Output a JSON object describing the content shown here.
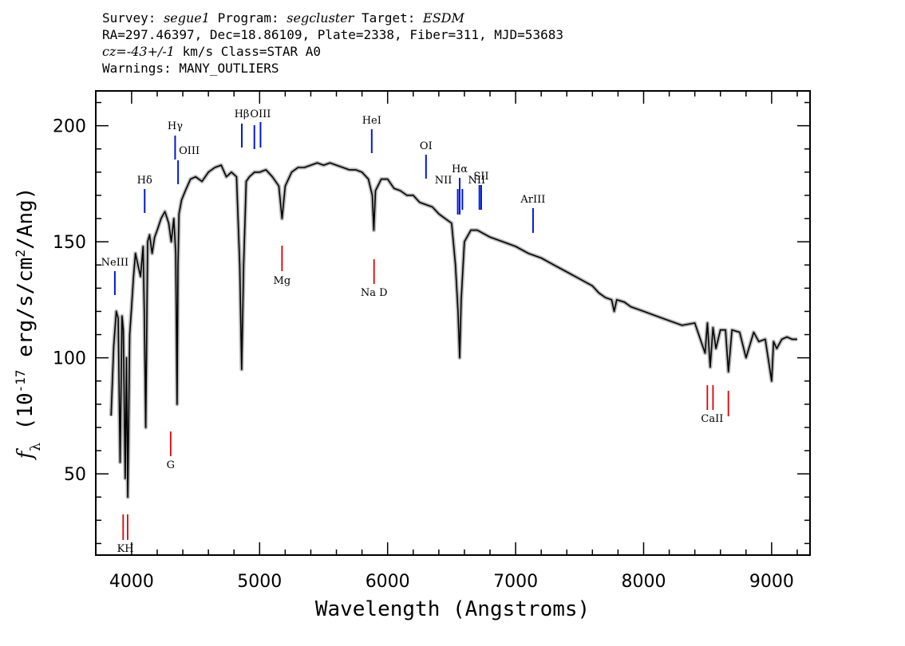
{
  "header": {
    "line1": {
      "survey_label": "Survey: ",
      "survey": "segue1",
      "program_label": " Program: ",
      "program": "segcluster",
      "target_label": " Target: ",
      "target": "ESDM"
    },
    "line2": "RA=297.46397, Dec=18.86109, Plate=2338, Fiber=311, MJD=53683",
    "line3": {
      "cz": "cz=-43+/-1",
      "rest": " km/s Class=STAR A0"
    },
    "line4": "Warnings: MANY_OUTLIERS"
  },
  "chart_data": {
    "type": "line",
    "xlabel": "Wavelength (Angstroms)",
    "ylabel": "f_λ (10^-17 erg/s/cm^2/Ang)",
    "xlim": [
      3720,
      9300
    ],
    "ylim": [
      15,
      215
    ],
    "xticks": [
      4000,
      5000,
      6000,
      7000,
      8000,
      9000
    ],
    "yticks": [
      50,
      100,
      150,
      200
    ],
    "colors": {
      "spectrum": "#000000",
      "error_band": "#b8b8b8",
      "emission": "#0018d8",
      "absorption": "#e00000"
    },
    "series": [
      {
        "x": [
          3840,
          3860,
          3880,
          3895,
          3910,
          3925,
          3935,
          3950,
          3960,
          3970,
          3985,
          4000,
          4015,
          4030,
          4050,
          4070,
          4090,
          4100,
          4110,
          4125,
          4140,
          4160,
          4180,
          4200,
          4230,
          4260,
          4290,
          4310,
          4330,
          4345,
          4355,
          4362,
          4370,
          4390,
          4420,
          4460,
          4500,
          4550,
          4600,
          4650,
          4700,
          4740,
          4780,
          4820,
          4845,
          4860,
          4875,
          4895,
          4920,
          4960,
          5000,
          5050,
          5100,
          5150,
          5175,
          5200,
          5250,
          5300,
          5350,
          5400,
          5450,
          5500,
          5550,
          5600,
          5650,
          5700,
          5750,
          5800,
          5850,
          5880,
          5892,
          5905,
          5950,
          6000,
          6050,
          6100,
          6150,
          6200,
          6250,
          6300,
          6350,
          6400,
          6450,
          6500,
          6530,
          6550,
          6563,
          6575,
          6600,
          6650,
          6700,
          6800,
          6900,
          7000,
          7100,
          7200,
          7300,
          7400,
          7500,
          7600,
          7650,
          7700,
          7750,
          7770,
          7790,
          7850,
          7900,
          8000,
          8100,
          8200,
          8300,
          8400,
          8480,
          8498,
          8520,
          8542,
          8565,
          8600,
          8640,
          8662,
          8690,
          8750,
          8800,
          8860,
          8900,
          8950,
          9000,
          9015,
          9040,
          9080,
          9120,
          9160,
          9200
        ],
        "y": [
          75,
          105,
          120,
          117,
          55,
          118,
          112,
          48,
          100,
          40,
          110,
          122,
          135,
          145,
          140,
          135,
          148,
          118,
          70,
          150,
          153,
          145,
          152,
          155,
          160,
          163,
          158,
          150,
          160,
          145,
          80,
          140,
          162,
          168,
          172,
          177,
          178,
          176,
          180,
          182,
          183,
          178,
          180,
          178,
          140,
          95,
          140,
          176,
          178,
          180,
          180,
          181,
          178,
          174,
          160,
          174,
          180,
          182,
          182,
          183,
          184,
          183,
          184,
          183,
          182,
          181,
          181,
          180,
          177,
          170,
          155,
          172,
          177,
          177,
          173,
          172,
          170,
          170,
          167,
          166,
          165,
          162,
          160,
          158,
          140,
          120,
          100,
          125,
          150,
          155,
          155,
          152,
          150,
          148,
          145,
          143,
          140,
          137,
          134,
          131,
          128,
          126,
          125,
          120,
          125,
          124,
          122,
          120,
          118,
          116,
          114,
          115,
          102,
          115,
          96,
          113,
          104,
          112,
          112,
          94,
          112,
          111,
          100,
          111,
          107,
          108,
          90,
          107,
          104,
          108,
          109,
          108,
          108
        ]
      }
    ],
    "emission_lines": [
      {
        "name": "NeIII",
        "wave": 3869
      },
      {
        "name": "Hδ",
        "wave": 4102
      },
      {
        "name": "Hγ",
        "wave": 4340
      },
      {
        "name": "OIII",
        "wave": 4363
      },
      {
        "name": "Hβ",
        "wave": 4861
      },
      {
        "name": "OIII",
        "wave": 4959
      },
      {
        "name": "OIII",
        "wave": 5007
      },
      {
        "name": "HeI",
        "wave": 5876
      },
      {
        "name": "OI",
        "wave": 6300
      },
      {
        "name": "NII",
        "wave": 6548
      },
      {
        "name": "Hα",
        "wave": 6563
      },
      {
        "name": "NII",
        "wave": 6584
      },
      {
        "name": "SII",
        "wave": 6717
      },
      {
        "name": "SII",
        "wave": 6731
      },
      {
        "name": "ArIII",
        "wave": 7136
      }
    ],
    "absorption_lines": [
      {
        "name": "K",
        "wave": 3934
      },
      {
        "name": "H",
        "wave": 3969
      },
      {
        "name": "G",
        "wave": 4305
      },
      {
        "name": "Mg",
        "wave": 5175
      },
      {
        "name": "Na D",
        "wave": 5894
      },
      {
        "name": "CaII",
        "wave": 8498
      },
      {
        "name": "CaII",
        "wave": 8542
      },
      {
        "name": "CaII",
        "wave": 8662
      }
    ]
  }
}
